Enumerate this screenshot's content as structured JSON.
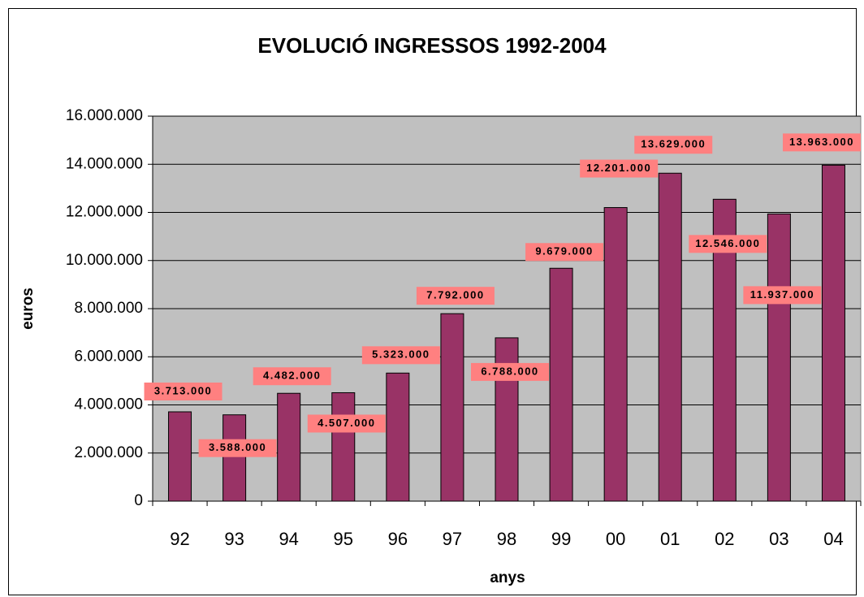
{
  "chart_data": {
    "type": "bar",
    "title": "EVOLUCIÓ INGRESSOS 1992-2004",
    "x_label": "anys",
    "y_label": "euros",
    "categories": [
      "92",
      "93",
      "94",
      "95",
      "96",
      "97",
      "98",
      "99",
      "00",
      "01",
      "02",
      "03",
      "04"
    ],
    "values": [
      3713000,
      3588000,
      4482000,
      4507000,
      5323000,
      7792000,
      6788000,
      9679000,
      12201000,
      13629000,
      12546000,
      11937000,
      13963000
    ],
    "value_labels": [
      "3.713.000",
      "3.588.000",
      "4.482.000",
      "4.507.000",
      "5.323.000",
      "7.792.000",
      "6.788.000",
      "9.679.000",
      "12.201.000",
      "13.629.000",
      "12.546.000",
      "11.937.000",
      "13.963.000"
    ],
    "color": "#993366",
    "ylim": [
      0,
      16000000
    ],
    "yticks": [
      0,
      {
        "value": 2000000,
        "label": "2.000.000"
      },
      {
        "value": 4000000,
        "label": "4.000.000"
      },
      {
        "value": 6000000,
        "label": "6.000.000"
      },
      {
        "value": 8000000,
        "label": "8.000.000"
      },
      {
        "value": 10000000,
        "label": "10.000.000"
      },
      {
        "value": 12000000,
        "label": "12.000.000"
      },
      {
        "value": 14000000,
        "label": "14.000.000"
      },
      {
        "value": 16000000,
        "label": "16.000.000"
      }
    ],
    "grid": true
  }
}
